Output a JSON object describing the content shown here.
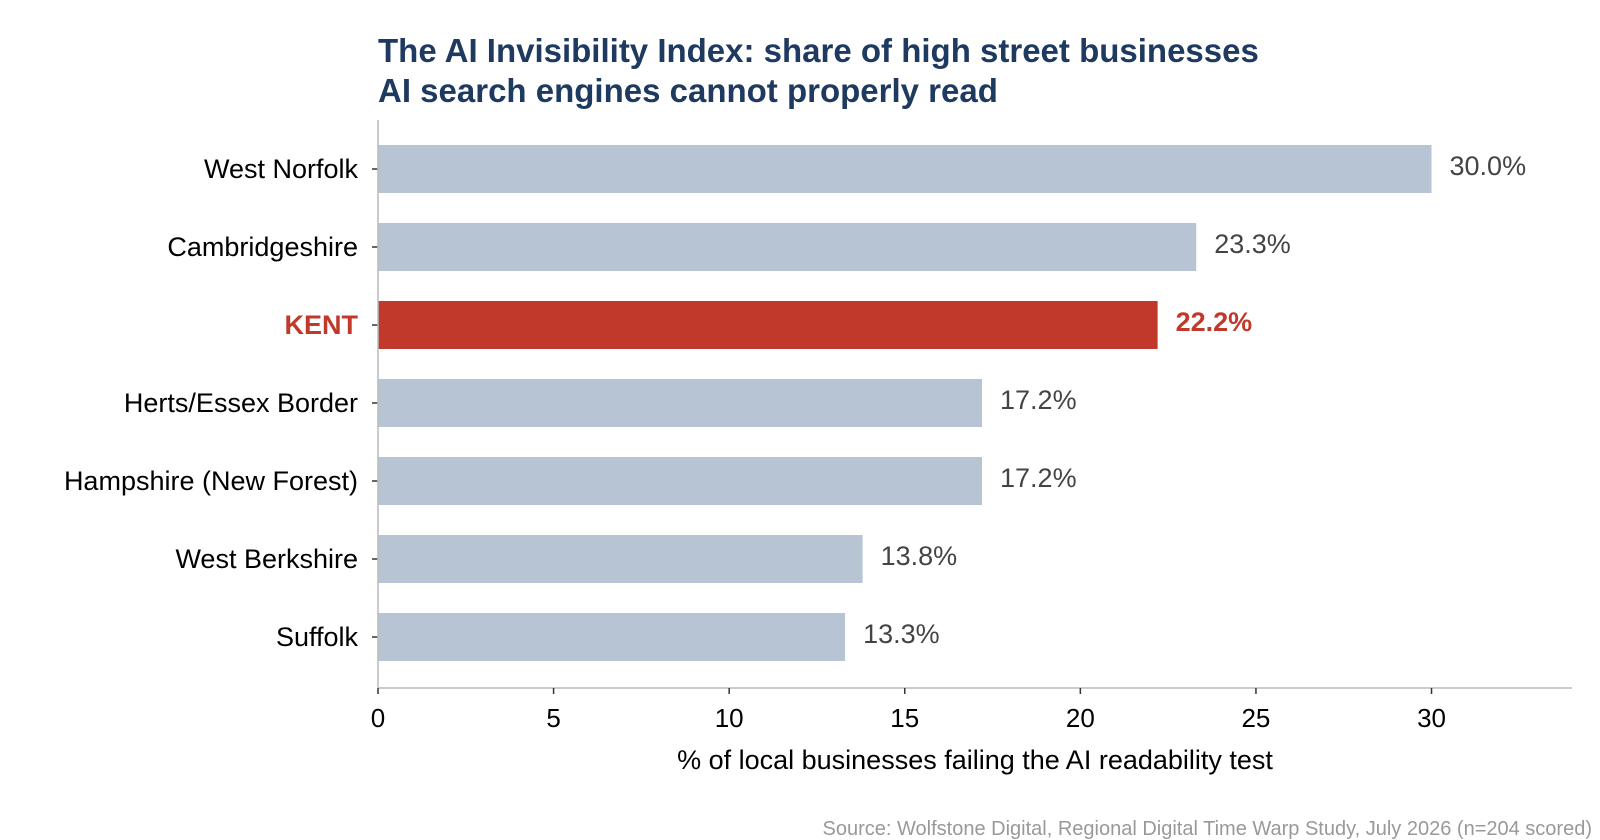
{
  "chart_data": {
    "type": "bar",
    "orientation": "horizontal",
    "title_lines": [
      "The AI Invisibility Index: share of high street businesses",
      "AI search engines cannot properly read"
    ],
    "categories": [
      "West Norfolk",
      "Cambridgeshire",
      "KENT",
      "Herts/Essex Border",
      "Hampshire (New Forest)",
      "West Berkshire",
      "Suffolk"
    ],
    "values": [
      30.0,
      23.3,
      22.2,
      17.2,
      17.2,
      13.8,
      13.3
    ],
    "value_labels": [
      "30.0%",
      "23.3%",
      "22.2%",
      "17.2%",
      "17.2%",
      "13.8%",
      "13.3%"
    ],
    "highlight_index": 2,
    "xlabel": "% of local businesses failing the AI readability test",
    "xlim": [
      0,
      34
    ],
    "xticks": [
      0,
      5,
      10,
      15,
      20,
      25,
      30
    ],
    "grid": false,
    "source": "Source: Wolfstone Digital, Regional Digital Time Warp Study, July 2026 (n=204 scored)",
    "colors": {
      "bar": "#b7c4d3",
      "highlight": "#c0392b",
      "title": "#1f3a60",
      "label": "#000000",
      "value_text": "#444444",
      "axis": "#bbbbbb",
      "source": "#999999"
    }
  }
}
